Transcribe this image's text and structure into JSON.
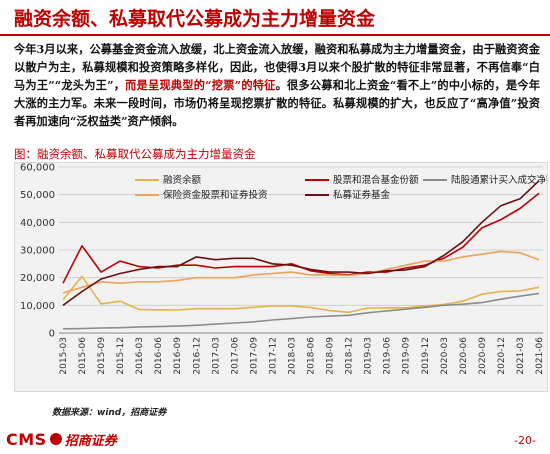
{
  "header": {
    "title": "融资余额、私募取代公募成为主力增量资金"
  },
  "body_text": {
    "part1": "今年3月以来，公募基金资金流入放缓，北上资金流入放缓，融资和私募成为主力增量资金，由于融资资金以散户为主，私募规模和投资策略多样化，因此，也使得3月以来个股扩散的特征非常显著，不再信奉“白马为王”“龙头为王”，",
    "highlight": "而是呈现典型的“挖票”的特征",
    "part2": "。很多公募和北上资金“看不上”的中小标的，是今年大涨的主力军。未来一段时间，市场仍将呈现挖票扩散的特征。私募规模的扩大，也反应了“高净值”投资者再加速向“泛权益类”资产倾斜。"
  },
  "chart_label": "图：融资余额、私募取代公募成为主力增量资金",
  "source": "数据来源：wind，招商证券",
  "footer": {
    "logo_text": "CMS",
    "logo_name": "招商证券",
    "page": "-20-"
  },
  "colors": {
    "brand": "#c00000",
    "margin": "#e3b347",
    "equity_fund": "#c00000",
    "northbound": "#8c8c8c",
    "insurance": "#f0a15a",
    "private_fund": "#6b1010"
  },
  "chart_data": {
    "type": "line",
    "title": "",
    "xlabel": "",
    "ylabel": "",
    "ylim": [
      0,
      60000
    ],
    "yticks": [
      0,
      10000,
      20000,
      30000,
      40000,
      50000,
      60000
    ],
    "ytick_labels": [
      "0",
      "10,000",
      "20,000",
      "30,000",
      "40,000",
      "50,000",
      "60,000"
    ],
    "grid": true,
    "legend_placement": "top",
    "categories": [
      "2015-03",
      "2015-06",
      "2015-09",
      "2015-12",
      "2016-03",
      "2016-06",
      "2016-09",
      "2016-12",
      "2017-03",
      "2017-06",
      "2017-09",
      "2017-12",
      "2018-03",
      "2018-06",
      "2018-09",
      "2018-12",
      "2019-03",
      "2019-06",
      "2019-09",
      "2019-12",
      "2020-03",
      "2020-06",
      "2020-09",
      "2020-12",
      "2021-03",
      "2021-06"
    ],
    "series": [
      {
        "name": "融资余额",
        "color": "#e3b347",
        "values": [
          12000,
          20500,
          10500,
          11500,
          8500,
          8400,
          8300,
          8800,
          8800,
          8800,
          9300,
          9800,
          9800,
          9200,
          8100,
          7500,
          9000,
          9100,
          9100,
          9800,
          10300,
          11500,
          14000,
          15000,
          15200,
          16500
        ]
      },
      {
        "name": "股票和混合基金份额",
        "color": "#c00000",
        "values": [
          18000,
          31500,
          22000,
          26000,
          24000,
          23500,
          24500,
          24500,
          23500,
          24000,
          24000,
          24000,
          25000,
          22500,
          21500,
          21000,
          22000,
          22000,
          23500,
          24500,
          27000,
          31000,
          38000,
          41000,
          45000,
          50500
        ]
      },
      {
        "name": "陆股通累计买入成交净额",
        "color": "#8c8c8c",
        "values": [
          1500,
          1600,
          1800,
          1900,
          2200,
          2300,
          2500,
          2800,
          3200,
          3600,
          4000,
          4700,
          5200,
          5800,
          6100,
          6400,
          7300,
          8000,
          8600,
          9300,
          10000,
          10400,
          11000,
          12200,
          13300,
          14300
        ]
      },
      {
        "name": "保险资金股票和证券投资",
        "color": "#f0a15a",
        "values": [
          14500,
          16500,
          18500,
          18000,
          18500,
          18500,
          19000,
          20000,
          20000,
          20000,
          21000,
          21500,
          22000,
          21000,
          21000,
          20800,
          21500,
          23000,
          24500,
          26000,
          26000,
          27500,
          28500,
          29500,
          29000,
          26500
        ]
      },
      {
        "name": "私募证券基金",
        "color": "#6b1010",
        "values": [
          10000,
          15000,
          19500,
          21500,
          23000,
          24000,
          24000,
          27500,
          26500,
          27000,
          27000,
          25000,
          24500,
          23000,
          22000,
          22000,
          21500,
          22500,
          22800,
          24000,
          28000,
          33000,
          40000,
          46000,
          48500,
          55000
        ]
      }
    ]
  }
}
